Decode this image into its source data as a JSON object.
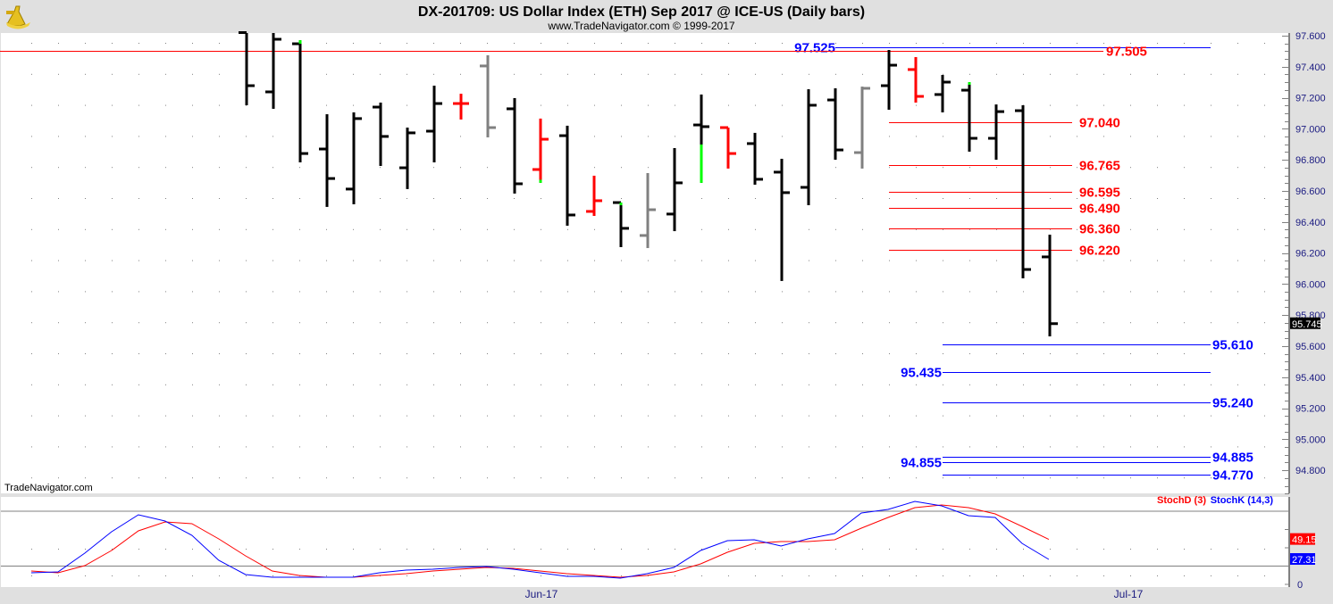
{
  "header": {
    "title": "DX-201709:  US Dollar Index (ETH) Sep 2017 @ ICE-US  (Daily bars)",
    "subtitle": "www.TradeNavigator.com © 1999-2017",
    "logo": "sextant-logo"
  },
  "watermark": "TradeNavigator.com",
  "colors": {
    "up_bar": "#000000",
    "red_bar": "#ff0000",
    "gray_bar": "#808080",
    "marker": "#00ff00",
    "level_red": "#ff0000",
    "level_blue": "#0000ff",
    "stoch_d": "#ff0000",
    "stoch_k": "#0000ff"
  },
  "chart_data": [
    {
      "type": "ohlc",
      "title": "DX-201709:  US Dollar Index (ETH) Sep 2017 @ ICE-US  (Daily bars)",
      "ylim": [
        94.7,
        97.62
      ],
      "y_ticks": [
        "97.600",
        "97.400",
        "97.200",
        "97.000",
        "96.800",
        "96.600",
        "96.400",
        "96.200",
        "96.000",
        "95.800",
        "95.600",
        "95.400",
        "95.200",
        "95.000",
        "94.800"
      ],
      "x_labels": [
        "Jun-17",
        "Jul-17"
      ],
      "last_price": "95.745",
      "grid": "dotted",
      "bars": [
        {
          "o": 97.62,
          "h": 97.62,
          "l": 97.152,
          "c": 97.278,
          "color": "black"
        },
        {
          "o": 97.238,
          "h": 97.62,
          "l": 97.129,
          "c": 97.577,
          "color": "black"
        },
        {
          "o": 97.548,
          "h": 97.571,
          "l": 96.784,
          "c": 96.841,
          "color": "black"
        },
        {
          "o": 96.87,
          "h": 97.094,
          "l": 96.497,
          "c": 96.68,
          "color": "black"
        },
        {
          "o": 96.612,
          "h": 97.106,
          "l": 96.514,
          "c": 97.066,
          "color": "black"
        },
        {
          "o": 97.14,
          "h": 97.169,
          "l": 96.761,
          "c": 96.951,
          "color": "black"
        },
        {
          "o": 96.749,
          "h": 97.008,
          "l": 96.612,
          "c": 96.974,
          "color": "black"
        },
        {
          "o": 96.985,
          "h": 97.278,
          "l": 96.784,
          "c": 97.163,
          "color": "black"
        },
        {
          "o": 97.163,
          "h": 97.226,
          "l": 97.06,
          "c": 97.163,
          "color": "red"
        },
        {
          "o": 97.405,
          "h": 97.474,
          "l": 96.945,
          "c": 97.008,
          "color": "gray"
        },
        {
          "o": 97.129,
          "h": 97.198,
          "l": 96.583,
          "c": 96.646,
          "color": "black"
        },
        {
          "o": 96.738,
          "h": 97.066,
          "l": 96.652,
          "c": 96.933,
          "color": "red"
        },
        {
          "o": 96.956,
          "h": 97.02,
          "l": 96.376,
          "c": 96.445,
          "color": "black"
        },
        {
          "o": 96.468,
          "h": 96.698,
          "l": 96.439,
          "c": 96.537,
          "color": "red"
        },
        {
          "o": 96.525,
          "h": 96.525,
          "l": 96.238,
          "c": 96.359,
          "color": "black"
        },
        {
          "o": 96.313,
          "h": 96.715,
          "l": 96.232,
          "c": 96.479,
          "color": "gray"
        },
        {
          "o": 96.451,
          "h": 96.876,
          "l": 96.341,
          "c": 96.652,
          "color": "black"
        },
        {
          "o": 97.025,
          "h": 97.221,
          "l": 96.652,
          "c": 97.014,
          "color": "black"
        },
        {
          "o": 97.008,
          "h": 97.008,
          "l": 96.744,
          "c": 96.841,
          "color": "red"
        },
        {
          "o": 96.905,
          "h": 96.974,
          "l": 96.64,
          "c": 96.675,
          "color": "black"
        },
        {
          "o": 96.721,
          "h": 96.807,
          "l": 96.02,
          "c": 96.589,
          "color": "black"
        },
        {
          "o": 96.623,
          "h": 97.255,
          "l": 96.508,
          "c": 97.152,
          "color": "black"
        },
        {
          "o": 97.186,
          "h": 97.261,
          "l": 96.801,
          "c": 96.864,
          "color": "black"
        },
        {
          "o": 96.847,
          "h": 97.272,
          "l": 96.744,
          "c": 97.261,
          "color": "gray"
        },
        {
          "o": 97.278,
          "h": 97.508,
          "l": 97.123,
          "c": 97.41,
          "color": "black"
        },
        {
          "o": 97.382,
          "h": 97.462,
          "l": 97.169,
          "c": 97.209,
          "color": "red"
        },
        {
          "o": 97.221,
          "h": 97.347,
          "l": 97.106,
          "c": 97.301,
          "color": "black"
        },
        {
          "o": 97.249,
          "h": 97.301,
          "l": 96.853,
          "c": 96.939,
          "color": "black"
        },
        {
          "o": 96.939,
          "h": 97.157,
          "l": 96.801,
          "c": 97.111,
          "color": "black"
        },
        {
          "o": 97.117,
          "h": 97.152,
          "l": 96.037,
          "c": 96.094,
          "color": "black"
        },
        {
          "o": 96.175,
          "h": 96.318,
          "l": 95.663,
          "c": 95.745,
          "color": "black"
        }
      ],
      "green_segments": [
        [
          2,
          97.548,
          97.571
        ],
        [
          11,
          96.652,
          96.672
        ],
        [
          14,
          96.515,
          96.525
        ],
        [
          17,
          96.652,
          96.899
        ],
        [
          27,
          97.285,
          97.301
        ]
      ],
      "levels": [
        {
          "value": 97.525,
          "label": "97.525",
          "color": "blue"
        },
        {
          "value": 97.505,
          "label": "97.505",
          "color": "red"
        },
        {
          "value": 97.04,
          "label": "97.040",
          "color": "red"
        },
        {
          "value": 96.765,
          "label": "96.765",
          "color": "red"
        },
        {
          "value": 96.595,
          "label": "96.595",
          "color": "red"
        },
        {
          "value": 96.49,
          "label": "96.490",
          "color": "red"
        },
        {
          "value": 96.36,
          "label": "96.360",
          "color": "red"
        },
        {
          "value": 96.22,
          "label": "96.220",
          "color": "red"
        },
        {
          "value": 95.61,
          "label": "95.610",
          "color": "blue"
        },
        {
          "value": 95.435,
          "label": "95.435",
          "color": "blue"
        },
        {
          "value": 95.24,
          "label": "95.240",
          "color": "blue"
        },
        {
          "value": 94.885,
          "label": "94.885",
          "color": "blue"
        },
        {
          "value": 94.855,
          "label": "94.855",
          "color": "blue"
        },
        {
          "value": 94.77,
          "label": "94.770",
          "color": "blue"
        }
      ]
    },
    {
      "type": "line",
      "ylim": [
        0,
        100
      ],
      "y_ticks": [
        "0"
      ],
      "reference_lines": [
        20,
        80
      ],
      "series": [
        {
          "name": "StochD (3)",
          "color": "#ff0000",
          "last": "49.15",
          "values": [
            14.6,
            12.7,
            20.5,
            37.1,
            58.5,
            68.3,
            66.3,
            49.8,
            31.2,
            14.6,
            9.8,
            7.8,
            7.8,
            9.8,
            11.7,
            14.6,
            16.6,
            18.5,
            17.6,
            14.6,
            11.7,
            9.8,
            7.8,
            9.8,
            13.7,
            22.4,
            35.1,
            44.9,
            46.8,
            46.8,
            48.8,
            61.5,
            73.2,
            83.9,
            86.8,
            83.9,
            77.1,
            63.4,
            49.15
          ]
        },
        {
          "name": "StochK (14,3)",
          "color": "#0000ff",
          "last": "27.31",
          "values": [
            12.7,
            13.7,
            34.1,
            57.6,
            76.1,
            69.3,
            53.7,
            26.3,
            10.7,
            7.8,
            7.8,
            7.8,
            7.8,
            12.7,
            15.6,
            16.6,
            18.5,
            19.5,
            16.6,
            12.7,
            8.8,
            8.8,
            6.8,
            11.7,
            18.5,
            37.1,
            47.8,
            48.8,
            42.0,
            49.8,
            55.6,
            78.0,
            82.0,
            90.7,
            85.9,
            75.1,
            73.2,
            44.9,
            27.31
          ]
        }
      ]
    }
  ]
}
